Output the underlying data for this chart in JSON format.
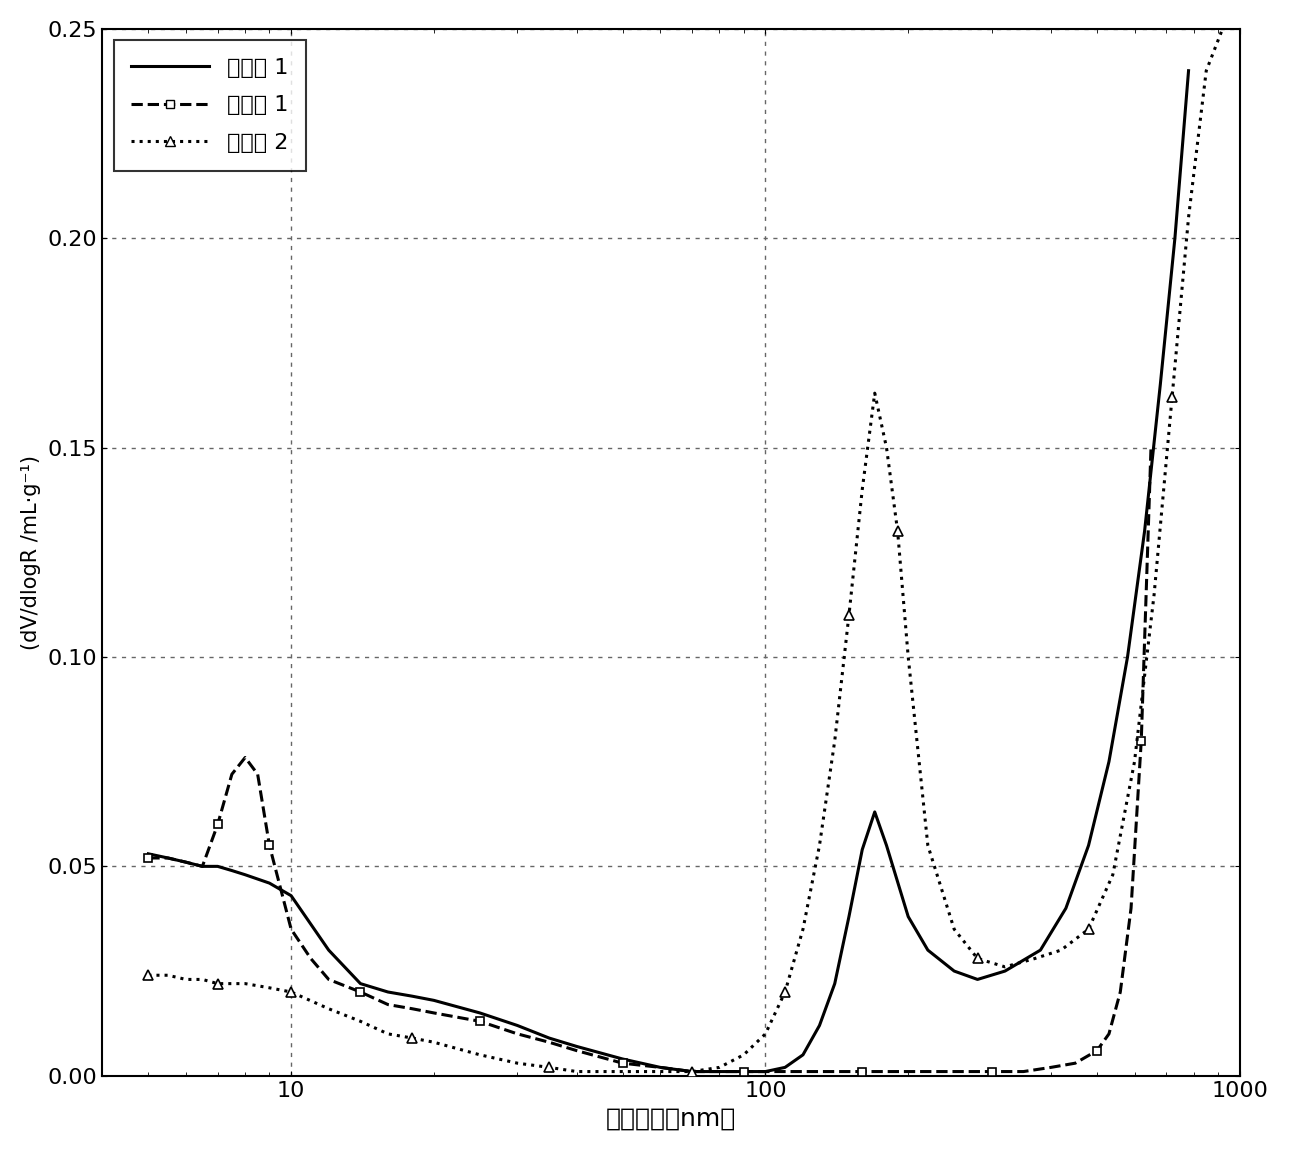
{
  "title": "",
  "xlabel": "孔隙半径（nm）",
  "ylabel": "(dV/dlogR /mL·g⁻¹)",
  "ylim": [
    0.0,
    0.25
  ],
  "yticks": [
    0.0,
    0.05,
    0.1,
    0.15,
    0.2,
    0.25
  ],
  "grid_color": "#666666",
  "background_color": "#ffffff",
  "legend_labels": [
    "实施例 1",
    "比较例 1",
    "比较例 2"
  ],
  "series1_x": [
    5.0,
    5.5,
    6.0,
    6.5,
    7.0,
    7.5,
    8.0,
    9.0,
    10.0,
    12.0,
    14.0,
    16.0,
    18.0,
    20.0,
    25.0,
    30.0,
    35.0,
    40.0,
    50.0,
    60.0,
    70.0,
    80.0,
    90.0,
    100.0,
    110.0,
    120.0,
    130.0,
    140.0,
    150.0,
    160.0,
    170.0,
    180.0,
    200.0,
    220.0,
    250.0,
    280.0,
    320.0,
    380.0,
    430.0,
    480.0,
    530.0,
    580.0,
    630.0,
    680.0,
    730.0,
    780.0
  ],
  "series1_y": [
    0.053,
    0.052,
    0.051,
    0.05,
    0.05,
    0.049,
    0.048,
    0.046,
    0.043,
    0.03,
    0.022,
    0.02,
    0.019,
    0.018,
    0.015,
    0.012,
    0.009,
    0.007,
    0.004,
    0.002,
    0.001,
    0.001,
    0.001,
    0.001,
    0.002,
    0.005,
    0.012,
    0.022,
    0.038,
    0.054,
    0.063,
    0.055,
    0.038,
    0.03,
    0.025,
    0.023,
    0.025,
    0.03,
    0.04,
    0.055,
    0.075,
    0.1,
    0.13,
    0.165,
    0.2,
    0.24
  ],
  "series2_x": [
    5.0,
    5.5,
    6.0,
    6.5,
    7.0,
    7.5,
    8.0,
    8.5,
    9.0,
    10.0,
    11.0,
    12.0,
    14.0,
    16.0,
    18.0,
    20.0,
    25.0,
    30.0,
    35.0,
    40.0,
    50.0,
    60.0,
    70.0,
    80.0,
    90.0,
    100.0,
    120.0,
    140.0,
    160.0,
    180.0,
    200.0,
    250.0,
    300.0,
    350.0,
    400.0,
    450.0,
    500.0,
    530.0,
    560.0,
    590.0,
    620.0,
    650.0
  ],
  "series2_y": [
    0.052,
    0.052,
    0.051,
    0.05,
    0.06,
    0.072,
    0.076,
    0.072,
    0.055,
    0.035,
    0.028,
    0.023,
    0.02,
    0.017,
    0.016,
    0.015,
    0.013,
    0.01,
    0.008,
    0.006,
    0.003,
    0.002,
    0.001,
    0.001,
    0.001,
    0.001,
    0.001,
    0.001,
    0.001,
    0.001,
    0.001,
    0.001,
    0.001,
    0.001,
    0.002,
    0.003,
    0.006,
    0.01,
    0.02,
    0.04,
    0.08,
    0.15
  ],
  "series3_x": [
    5.0,
    5.5,
    6.0,
    6.5,
    7.0,
    7.5,
    8.0,
    9.0,
    10.0,
    12.0,
    14.0,
    16.0,
    18.0,
    20.0,
    25.0,
    30.0,
    35.0,
    40.0,
    50.0,
    60.0,
    70.0,
    80.0,
    90.0,
    100.0,
    110.0,
    120.0,
    130.0,
    140.0,
    150.0,
    160.0,
    170.0,
    180.0,
    190.0,
    200.0,
    220.0,
    250.0,
    280.0,
    320.0,
    370.0,
    420.0,
    480.0,
    540.0,
    600.0,
    660.0,
    720.0,
    780.0,
    850.0,
    920.0
  ],
  "series3_y": [
    0.024,
    0.024,
    0.023,
    0.023,
    0.022,
    0.022,
    0.022,
    0.021,
    0.02,
    0.016,
    0.013,
    0.01,
    0.009,
    0.008,
    0.005,
    0.003,
    0.002,
    0.001,
    0.001,
    0.001,
    0.001,
    0.002,
    0.005,
    0.01,
    0.02,
    0.035,
    0.055,
    0.08,
    0.11,
    0.14,
    0.163,
    0.15,
    0.13,
    0.1,
    0.055,
    0.035,
    0.028,
    0.026,
    0.028,
    0.03,
    0.035,
    0.048,
    0.075,
    0.115,
    0.162,
    0.205,
    0.24,
    0.25
  ],
  "line_color": "#000000",
  "marker2": "s",
  "marker3": "^",
  "linestyle1": "solid",
  "linestyle2": "dashed",
  "linestyle3": "dotted",
  "linewidth": 2.2
}
